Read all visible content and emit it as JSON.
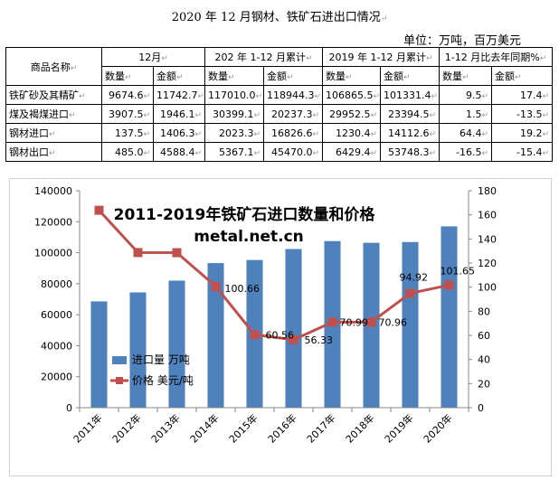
{
  "header": {
    "title": "2020 年 12 月钢材、铁矿石进出口情况",
    "unit": "单位：万吨，百万美元"
  },
  "table": {
    "row_header": "商品名称",
    "groups": [
      "12月",
      "202 年 1-12 月累计",
      "2019 年 1-12 月累计",
      "1-12 月比去年同期%"
    ],
    "subheaders": [
      "数量",
      "金额",
      "数量",
      "金额",
      "数量",
      "金额",
      "数量",
      "金额"
    ],
    "rows": [
      {
        "name": "铁矿砂及其精矿",
        "cells": [
          "9674.6",
          "11742.7",
          "117010.0",
          "118944.3",
          "106865.5",
          "101331.4",
          "9.5",
          "17.4"
        ]
      },
      {
        "name": "煤及褐煤进口",
        "cells": [
          "3907.5",
          "1946.1",
          "30399.1",
          "20237.3",
          "29952.5",
          "23394.5",
          "1.5",
          "-13.5"
        ]
      },
      {
        "name": "钢材进口",
        "cells": [
          "137.5",
          "1406.3",
          "2023.3",
          "16826.6",
          "1230.4",
          "14112.6",
          "64.4",
          "19.2"
        ]
      },
      {
        "name": "钢材出口",
        "cells": [
          "485.0",
          "4588.4",
          "5367.1",
          "45470.0",
          "6429.4",
          "53748.3",
          "-16.5",
          "-15.4"
        ]
      }
    ]
  },
  "chart_data": {
    "type": "bar+line",
    "title": "2011-2019年铁矿石进口数量和价格",
    "subtitle": "metal.net.cn",
    "categories": [
      "2011年",
      "2012年",
      "2013年",
      "2014年",
      "2015年",
      "2016年",
      "2017年",
      "2018年",
      "2019年",
      "2020年"
    ],
    "series": [
      {
        "name": "进口量 万吨",
        "type": "bar",
        "axis": "left",
        "color": "#4F81BD",
        "values": [
          68600,
          74400,
          82000,
          93300,
          95300,
          102400,
          107500,
          106400,
          106900,
          117000
        ]
      },
      {
        "name": "价格 美元/吨",
        "type": "line",
        "axis": "right",
        "color": "#C0504D",
        "values": [
          163.8,
          128.7,
          128.6,
          100.66,
          60.56,
          56.33,
          70.99,
          70.96,
          94.92,
          101.65
        ],
        "labels": [
          "",
          "",
          "",
          "100.66",
          "60.56",
          "56.33",
          "70.99",
          "70.96",
          "94.92",
          "101.65"
        ]
      }
    ],
    "y_left": {
      "min": 0,
      "max": 140000,
      "step": 20000,
      "ticks": [
        "0",
        "20000",
        "40000",
        "60000",
        "80000",
        "100000",
        "120000",
        "140000"
      ]
    },
    "y_right": {
      "min": 0,
      "max": 180,
      "step": 20,
      "ticks": [
        "0",
        "20",
        "40",
        "60",
        "80",
        "100",
        "120",
        "140",
        "160",
        "180"
      ]
    },
    "legend_position": "center-left"
  }
}
